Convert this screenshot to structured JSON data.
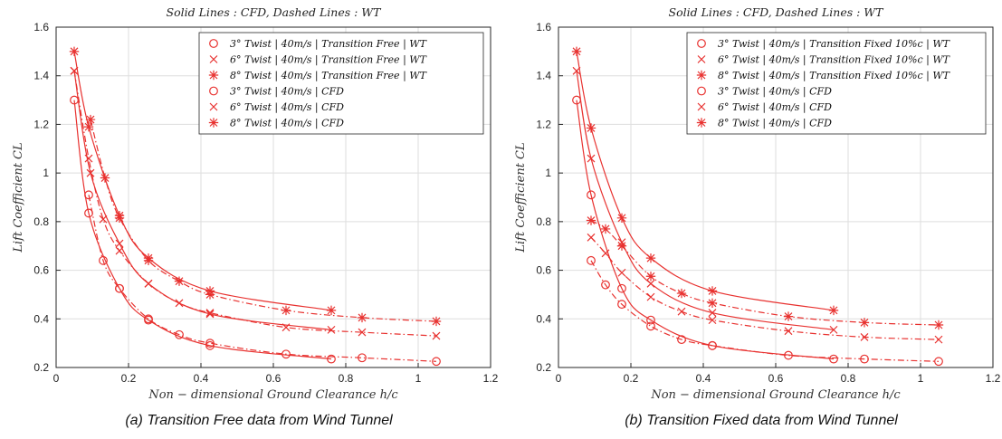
{
  "colors": {
    "series": "#e8312f",
    "grid": "#dedede",
    "axis": "#262626",
    "background": "#ffffff"
  },
  "captions": {
    "a": "(a)  Transition Free data from Wind Tunnel",
    "b": "(b)  Transition Fixed data from Wind Tunnel"
  },
  "chart_data": [
    {
      "type": "line",
      "title": "Solid Lines  :  CFD,  Dashed Lines  :  WT",
      "xlabel": "Non − dimensional  Ground Clearance  h/c",
      "ylabel": "Lift Coefficient  CL",
      "xlim": [
        0,
        1.2
      ],
      "ylim": [
        0.2,
        1.6
      ],
      "xticks": [
        "0",
        "0.2",
        "0.4",
        "0.6",
        "0.8",
        "1",
        "1.2"
      ],
      "yticks": [
        "0.2",
        "0.4",
        "0.6",
        "0.8",
        "1",
        "1.2",
        "1.4",
        "1.6"
      ],
      "grid": true,
      "legend_position": "top-right",
      "series": [
        {
          "name": "3° Twist | 40m/s | Transition Free | WT",
          "marker": "circle",
          "style": "dashdot",
          "x": [
            0.09,
            0.13,
            0.175,
            0.255,
            0.34,
            0.425,
            0.635,
            0.845,
            1.05
          ],
          "y": [
            0.91,
            0.64,
            0.525,
            0.4,
            0.335,
            0.3,
            0.255,
            0.24,
            0.225
          ]
        },
        {
          "name": "6° Twist | 40m/s | Transition Free | WT",
          "marker": "x",
          "style": "dashdot",
          "x": [
            0.05,
            0.09,
            0.13,
            0.175,
            0.255,
            0.34,
            0.425,
            0.635,
            0.845,
            1.05
          ],
          "y": [
            1.42,
            1.06,
            0.81,
            0.68,
            0.545,
            0.465,
            0.425,
            0.365,
            0.345,
            0.33
          ]
        },
        {
          "name": "8° Twist | 40m/s | Transition Free | WT",
          "marker": "asterisk",
          "style": "dashdot",
          "x": [
            0.095,
            0.135,
            0.175,
            0.255,
            0.34,
            0.425,
            0.635,
            0.845,
            1.05
          ],
          "y": [
            1.22,
            0.98,
            0.815,
            0.64,
            0.555,
            0.5,
            0.435,
            0.405,
            0.39
          ]
        },
        {
          "name": "3° Twist | 40m/s | CFD",
          "marker": "circle",
          "style": "solid",
          "x": [
            0.05,
            0.09,
            0.175,
            0.255,
            0.425,
            0.76
          ],
          "y": [
            1.3,
            0.835,
            0.525,
            0.395,
            0.29,
            0.235
          ]
        },
        {
          "name": "6° Twist | 40m/s | CFD",
          "marker": "x",
          "style": "solid",
          "x": [
            0.05,
            0.095,
            0.175,
            0.255,
            0.425,
            0.76
          ],
          "y": [
            1.42,
            1.0,
            0.71,
            0.545,
            0.42,
            0.355
          ]
        },
        {
          "name": "8° Twist | 40m/s | CFD",
          "marker": "asterisk",
          "style": "solid",
          "x": [
            0.05,
            0.09,
            0.175,
            0.255,
            0.425,
            0.76
          ],
          "y": [
            1.5,
            1.19,
            0.825,
            0.65,
            0.515,
            0.435
          ]
        }
      ]
    },
    {
      "type": "line",
      "title": "Solid Lines  :  CFD,  Dashed Lines  :  WT",
      "xlabel": "Non − dimensional  Ground Clearance  h/c",
      "ylabel": "Lift Coefficient  CL",
      "xlim": [
        0,
        1.2
      ],
      "ylim": [
        0.2,
        1.6
      ],
      "xticks": [
        "0",
        "0.2",
        "0.4",
        "0.6",
        "0.8",
        "1",
        "1.2"
      ],
      "yticks": [
        "0.2",
        "0.4",
        "0.6",
        "0.8",
        "1",
        "1.2",
        "1.4",
        "1.6"
      ],
      "grid": true,
      "legend_position": "top-right",
      "series": [
        {
          "name": "3° Twist | 40m/s | Transition Fixed 10%c | WT",
          "marker": "circle",
          "style": "dashdot",
          "x": [
            0.09,
            0.13,
            0.175,
            0.255,
            0.34,
            0.425,
            0.635,
            0.845,
            1.05
          ],
          "y": [
            0.64,
            0.54,
            0.46,
            0.37,
            0.315,
            0.29,
            0.25,
            0.235,
            0.225
          ]
        },
        {
          "name": "6° Twist | 40m/s | Transition Fixed 10%c | WT",
          "marker": "x",
          "style": "dashdot",
          "x": [
            0.09,
            0.13,
            0.175,
            0.255,
            0.34,
            0.425,
            0.635,
            0.845,
            1.05
          ],
          "y": [
            0.735,
            0.67,
            0.59,
            0.49,
            0.43,
            0.395,
            0.35,
            0.325,
            0.315
          ]
        },
        {
          "name": "8° Twist | 40m/s | Transition Fixed 10%c | WT",
          "marker": "asterisk",
          "style": "dashdot",
          "x": [
            0.09,
            0.13,
            0.175,
            0.255,
            0.34,
            0.425,
            0.635,
            0.845,
            1.05
          ],
          "y": [
            0.805,
            0.77,
            0.7,
            0.575,
            0.505,
            0.465,
            0.41,
            0.385,
            0.375
          ]
        },
        {
          "name": "3° Twist | 40m/s | CFD",
          "marker": "circle",
          "style": "solid",
          "x": [
            0.05,
            0.09,
            0.175,
            0.255,
            0.425,
            0.76
          ],
          "y": [
            1.3,
            0.91,
            0.525,
            0.395,
            0.29,
            0.235
          ]
        },
        {
          "name": "6° Twist | 40m/s | CFD",
          "marker": "x",
          "style": "solid",
          "x": [
            0.05,
            0.09,
            0.175,
            0.255,
            0.425,
            0.76
          ],
          "y": [
            1.42,
            1.06,
            0.715,
            0.545,
            0.425,
            0.355
          ]
        },
        {
          "name": "8° Twist | 40m/s | CFD",
          "marker": "asterisk",
          "style": "solid",
          "x": [
            0.05,
            0.09,
            0.175,
            0.255,
            0.425,
            0.76
          ],
          "y": [
            1.5,
            1.185,
            0.815,
            0.65,
            0.515,
            0.435
          ]
        }
      ]
    }
  ]
}
